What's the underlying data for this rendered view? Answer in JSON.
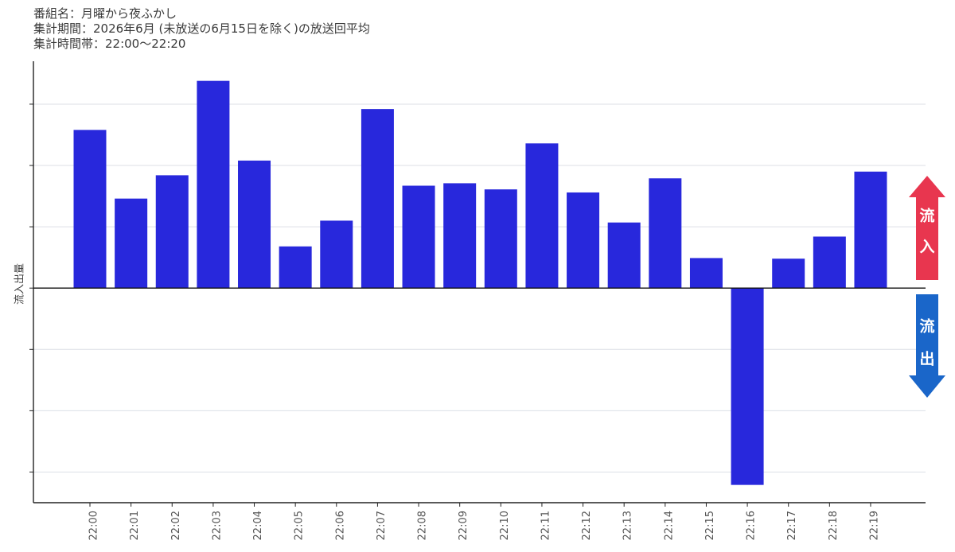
{
  "header": {
    "program": "番組名：月曜から夜ふかし",
    "period": "集計期間：2026年6月 (未放送の6月15日を除く)の放送回平均",
    "timeslot": "集計時間帯：22:00～22:20"
  },
  "indicators": {
    "inflow_label": "流入",
    "outflow_label": "流出",
    "inflow_color": "#e8364f",
    "outflow_color": "#1a66c9"
  },
  "chart_data": {
    "type": "bar",
    "title": "",
    "xlabel": "",
    "ylabel": "流入出量",
    "categories": [
      "22:00",
      "22:01",
      "22:02",
      "22:03",
      "22:04",
      "22:05",
      "22:06",
      "22:07",
      "22:08",
      "22:09",
      "22:10",
      "22:11",
      "22:12",
      "22:13",
      "22:14",
      "22:15",
      "22:16",
      "22:17",
      "22:18",
      "22:19"
    ],
    "values": [
      2.58,
      1.46,
      1.84,
      3.38,
      2.08,
      0.68,
      1.1,
      2.92,
      1.67,
      1.71,
      1.61,
      2.36,
      1.56,
      1.07,
      1.79,
      0.49,
      -3.21,
      0.48,
      0.84,
      1.9
    ],
    "ylim": [
      -3.5,
      3.7
    ],
    "y_ticks": [
      -3,
      -2,
      -1,
      0,
      1,
      2,
      3
    ],
    "y_tick_labels_shown": false,
    "grid": true,
    "bar_color": "#2828dc"
  }
}
